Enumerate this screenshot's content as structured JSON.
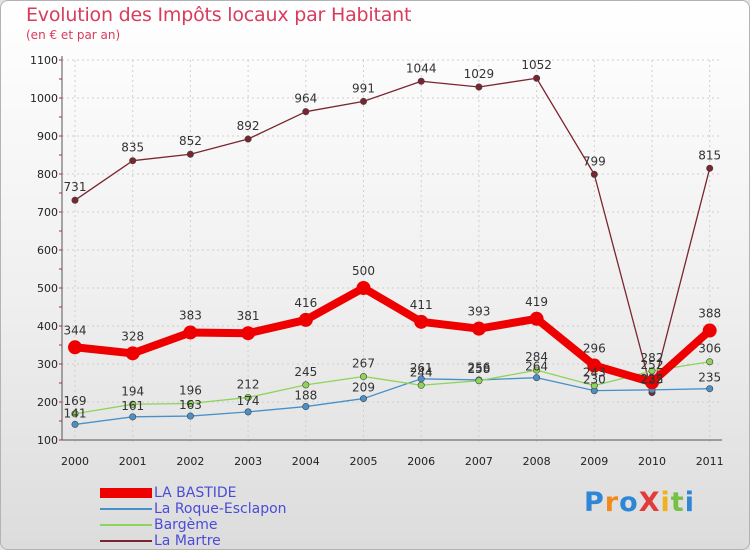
{
  "header": {
    "title": "Evolution des Impôts locaux par Habitant",
    "subtitle": "(en € et par an)"
  },
  "logo": {
    "text": "ProXiti",
    "letters": [
      "P",
      "r",
      "o",
      "X",
      "i",
      "t",
      "i"
    ],
    "letter_colors": [
      "#2e86d6",
      "#f08a1a",
      "#2e86d6",
      "#e23b3b",
      "#f0b21a",
      "#76c043",
      "#2e86d6"
    ]
  },
  "chart_data": {
    "type": "line",
    "title": "Evolution des Impôts locaux par Habitant",
    "subtitle": "(en € et par an)",
    "xlabel": "",
    "ylabel": "",
    "categories": [
      "2000",
      "2001",
      "2002",
      "2003",
      "2004",
      "2005",
      "2006",
      "2007",
      "2008",
      "2009",
      "2010",
      "2011"
    ],
    "ylim": [
      100,
      1100
    ],
    "yticks": [
      100,
      200,
      300,
      400,
      500,
      600,
      700,
      800,
      900,
      1000,
      1100
    ],
    "grid": true,
    "legend_position": "bottom-left",
    "series": [
      {
        "name": "La Martre",
        "color": "#7a2630",
        "values": [
          731,
          835,
          852,
          892,
          964,
          991,
          1044,
          1029,
          1052,
          799,
          225,
          815
        ],
        "labels": [
          "731",
          "835",
          "852",
          "892",
          "964",
          "991",
          "1044",
          "1029",
          "1052",
          "799",
          "225",
          "815"
        ]
      },
      {
        "name": "La Roque-Esclapon",
        "color": "#4a90c8",
        "values": [
          141,
          161,
          163,
          174,
          188,
          209,
          261,
          258,
          264,
          230,
          232,
          235
        ],
        "labels": [
          "141",
          "161",
          "163",
          "174",
          "188",
          "209",
          "261",
          "258",
          "264",
          "230",
          "232",
          "235"
        ]
      },
      {
        "name": "Bargème",
        "color": "#8ed35a",
        "values": [
          169,
          194,
          196,
          212,
          245,
          267,
          244,
          256,
          284,
          243,
          282,
          306
        ],
        "labels": [
          "169",
          "194",
          "196",
          "212",
          "245",
          "267",
          "244",
          "256",
          "284",
          "243",
          "282",
          "306"
        ]
      },
      {
        "name": "LA BASTIDE",
        "color": "#ee0000",
        "values": [
          344,
          328,
          383,
          381,
          416,
          500,
          411,
          393,
          419,
          296,
          252,
          388
        ],
        "labels": [
          "344",
          "328",
          "383",
          "381",
          "416",
          "500",
          "411",
          "393",
          "419",
          "296",
          "252",
          "388"
        ]
      }
    ],
    "legend": [
      "LA BASTIDE",
      "La Roque-Esclapon",
      "Bargème",
      "La Martre"
    ]
  }
}
